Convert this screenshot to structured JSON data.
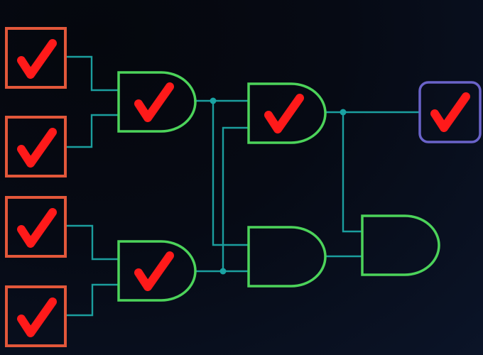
{
  "colors": {
    "wire": "#1b9e9e",
    "junction": "#1aa3a3",
    "input_border": "#e2573a",
    "gate_border": "#4cd35a",
    "output_border": "#6a63c9",
    "check": "#ff1a1a"
  },
  "inputs": [
    {
      "id": "in1",
      "checked": true
    },
    {
      "id": "in2",
      "checked": true
    },
    {
      "id": "in3",
      "checked": true
    },
    {
      "id": "in4",
      "checked": true
    }
  ],
  "gates": [
    {
      "id": "gate1",
      "type": "AND",
      "checked": true
    },
    {
      "id": "gate2",
      "type": "AND",
      "checked": true
    },
    {
      "id": "gate3",
      "type": "AND",
      "checked": true
    },
    {
      "id": "gate4",
      "type": "AND",
      "checked": false
    },
    {
      "id": "gate5",
      "type": "AND",
      "checked": false
    }
  ],
  "output": {
    "id": "out",
    "checked": true
  },
  "icons": {
    "check": "checkmark-icon"
  }
}
